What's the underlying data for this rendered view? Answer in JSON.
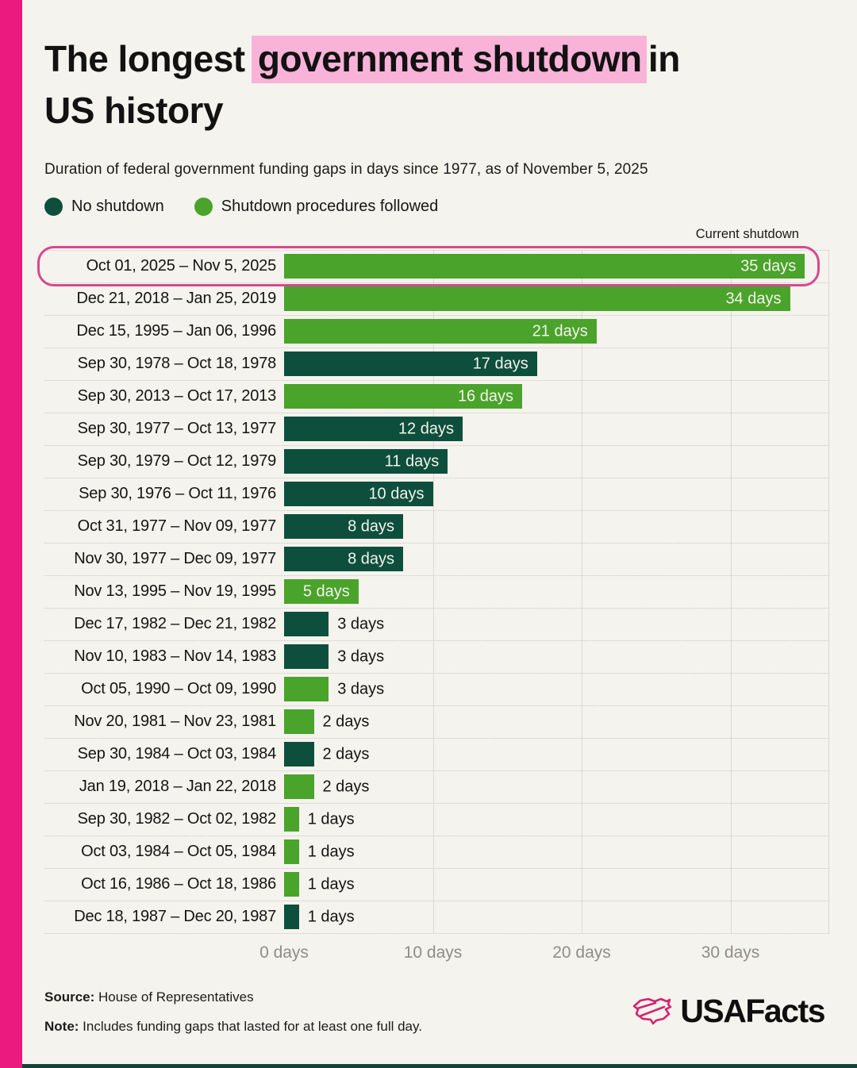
{
  "page": {
    "title": {
      "pre": "The longest ",
      "highlight": "government shutdown",
      "post": " in",
      "line2": "US history"
    },
    "subtitle": "Duration of federal government funding gaps in days since 1977, as of November 5, 2025"
  },
  "colors": {
    "background": "#f5f3ed",
    "accent_pink_stripe": "#ea1a7e",
    "title_highlight": "#f9b3d8",
    "no_shutdown_green": "#0d4f3c",
    "procedures_green": "#4aa32a",
    "current_outline_pink": "#d6498f",
    "gridline": "#dcdad2",
    "axis_text": "#8f8d86"
  },
  "chart_data": {
    "type": "bar",
    "orientation": "horizontal",
    "title": "The longest government shutdown in US history",
    "subtitle": "Duration of federal government funding gaps in days since 1977, as of November 5, 2025",
    "xlabel": "days",
    "xlim": [
      0,
      36.6
    ],
    "gridline_days": [
      10,
      20,
      30
    ],
    "right_boundary_line": true,
    "ticks": [
      {
        "label": "0 days",
        "day": 0
      },
      {
        "label": "10 days",
        "day": 10
      },
      {
        "label": "20 days",
        "day": 20
      },
      {
        "label": "30 days",
        "day": 30
      }
    ],
    "legend": [
      {
        "label": "No shutdown",
        "category": "no-shutdown",
        "color": "#0d4f3c"
      },
      {
        "label": "Shutdown procedures followed",
        "category": "procedures",
        "color": "#4aa32a"
      }
    ],
    "annotation": "Current shutdown",
    "rows": [
      {
        "period": "Oct 01, 2025 – Nov 5, 2025",
        "days": 35,
        "value_label": "35 days",
        "category": "procedures",
        "current": true
      },
      {
        "period": "Dec 21, 2018 – Jan 25, 2019",
        "days": 34,
        "value_label": "34 days",
        "category": "procedures",
        "current": false
      },
      {
        "period": "Dec 15, 1995 – Jan 06, 1996",
        "days": 21,
        "value_label": "21 days",
        "category": "procedures",
        "current": false
      },
      {
        "period": "Sep 30, 1978 – Oct 18, 1978",
        "days": 17,
        "value_label": "17 days",
        "category": "no-shutdown",
        "current": false
      },
      {
        "period": "Sep 30, 2013 – Oct 17, 2013",
        "days": 16,
        "value_label": "16 days",
        "category": "procedures",
        "current": false
      },
      {
        "period": "Sep 30, 1977 – Oct 13, 1977",
        "days": 12,
        "value_label": "12 days",
        "category": "no-shutdown",
        "current": false
      },
      {
        "period": "Sep 30, 1979 – Oct 12, 1979",
        "days": 11,
        "value_label": "11 days",
        "category": "no-shutdown",
        "current": false
      },
      {
        "period": "Sep 30, 1976 – Oct 11, 1976",
        "days": 10,
        "value_label": "10 days",
        "category": "no-shutdown",
        "current": false
      },
      {
        "period": "Oct 31, 1977 – Nov 09, 1977",
        "days": 8,
        "value_label": "8 days",
        "category": "no-shutdown",
        "current": false
      },
      {
        "period": "Nov 30, 1977 – Dec 09, 1977",
        "days": 8,
        "value_label": "8 days",
        "category": "no-shutdown",
        "current": false
      },
      {
        "period": "Nov 13, 1995 – Nov 19, 1995",
        "days": 5,
        "value_label": "5 days",
        "category": "procedures",
        "current": false
      },
      {
        "period": "Dec 17, 1982 – Dec 21, 1982",
        "days": 3,
        "value_label": "3 days",
        "category": "no-shutdown",
        "current": false
      },
      {
        "period": "Nov 10, 1983 – Nov 14, 1983",
        "days": 3,
        "value_label": "3 days",
        "category": "no-shutdown",
        "current": false
      },
      {
        "period": "Oct 05, 1990 – Oct 09, 1990",
        "days": 3,
        "value_label": "3 days",
        "category": "procedures",
        "current": false
      },
      {
        "period": "Nov 20, 1981 – Nov 23, 1981",
        "days": 2,
        "value_label": "2 days",
        "category": "procedures",
        "current": false
      },
      {
        "period": "Sep 30, 1984 – Oct 03, 1984",
        "days": 2,
        "value_label": "2 days",
        "category": "no-shutdown",
        "current": false
      },
      {
        "period": "Jan 19, 2018 – Jan 22, 2018",
        "days": 2,
        "value_label": "2 days",
        "category": "procedures",
        "current": false
      },
      {
        "period": "Sep 30, 1982 – Oct 02, 1982",
        "days": 1,
        "value_label": "1 days",
        "category": "procedures",
        "current": false
      },
      {
        "period": "Oct 03, 1984 – Oct 05, 1984",
        "days": 1,
        "value_label": "1 days",
        "category": "procedures",
        "current": false
      },
      {
        "period": "Oct 16, 1986 – Oct 18, 1986",
        "days": 1,
        "value_label": "1 days",
        "category": "procedures",
        "current": false
      },
      {
        "period": "Dec 18, 1987 – Dec 20, 1987",
        "days": 1,
        "value_label": "1 days",
        "category": "no-shutdown",
        "current": false
      }
    ]
  },
  "footer": {
    "source_prefix": "Source:",
    "source_text": " House of Representatives",
    "note_prefix": "Note:",
    "note_text": " Includes funding gaps that lasted for at least one full day.",
    "brand": "USAFacts"
  }
}
